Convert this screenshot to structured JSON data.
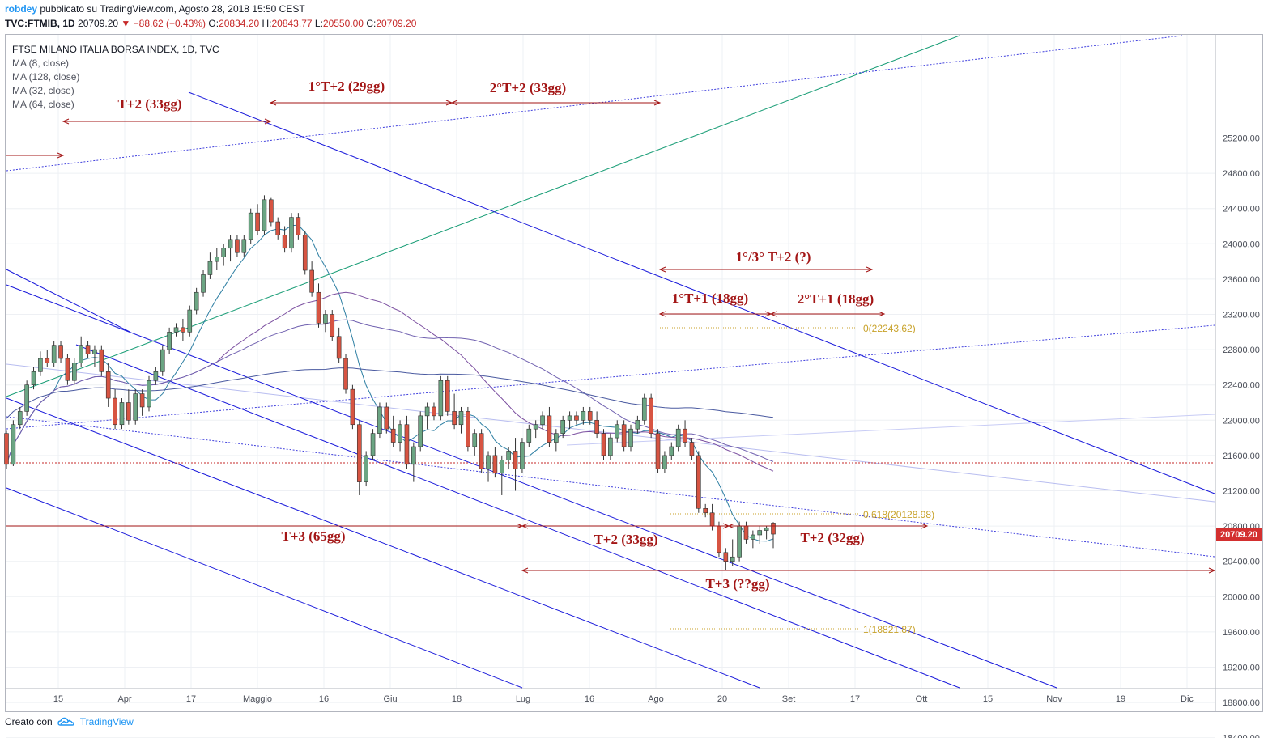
{
  "header": {
    "author": "robdey",
    "published": "pubblicato su TradingView.com, Agosto 28, 2018 15:50 CEST",
    "symbol": "TVC:FTMIB, 1D",
    "last": "20709.20",
    "change": "−88.62 (−0.43%)",
    "ohlc": {
      "o_label": "O:",
      "o": "20834.20",
      "h_label": "H:",
      "h": "20843.77",
      "l_label": "L:",
      "l": "20550.00",
      "c_label": "C:",
      "c": "20709.20"
    }
  },
  "legend": {
    "title": "FTSE MILANO ITALIA BORSA INDEX, 1D, TVC",
    "items": [
      "MA (8, close)",
      "MA (128, close)",
      "MA (32, close)",
      "MA (64, close)"
    ]
  },
  "footer": {
    "created_with": "Creato con",
    "brand": "TradingView"
  },
  "colors": {
    "up": "#6ba583",
    "down": "#d75442",
    "annotation": "#a31515",
    "channel": "#1a1adb",
    "fib": "#c8a22a",
    "trend": "#1a9e77"
  },
  "chart_data": {
    "type": "candlestick",
    "title": "FTSE MILANO ITALIA BORSA INDEX, 1D, TVC",
    "y_axis": {
      "ticks": [
        18400,
        18800,
        19200,
        19600,
        20000,
        20400,
        20800,
        21200,
        21600,
        22000,
        22400,
        22800,
        23200,
        23600,
        24000,
        24400,
        24800,
        25200
      ],
      "min": 18150,
      "max": 25600
    },
    "x_axis": {
      "ticks": [
        "15",
        "Apr",
        "17",
        "Maggio",
        "16",
        "Giu",
        "18",
        "Lug",
        "16",
        "Ago",
        "20",
        "Set",
        "17",
        "Ott",
        "15",
        "Nov",
        "19",
        "Dic"
      ]
    },
    "last_price": "20709.20",
    "candles": [
      [
        21850,
        21880,
        21450,
        21500
      ],
      [
        21500,
        22000,
        21480,
        21950
      ],
      [
        21950,
        22150,
        21900,
        22100
      ],
      [
        22100,
        22450,
        22050,
        22400
      ],
      [
        22400,
        22600,
        22350,
        22550
      ],
      [
        22550,
        22780,
        22500,
        22700
      ],
      [
        22700,
        22800,
        22600,
        22650
      ],
      [
        22650,
        22900,
        22600,
        22850
      ],
      [
        22850,
        22900,
        22650,
        22700
      ],
      [
        22700,
        22750,
        22400,
        22450
      ],
      [
        22450,
        22700,
        22400,
        22650
      ],
      [
        22650,
        22950,
        22600,
        22850
      ],
      [
        22850,
        22900,
        22700,
        22750
      ],
      [
        22750,
        22850,
        22600,
        22800
      ],
      [
        22800,
        22850,
        22500,
        22550
      ],
      [
        22550,
        22650,
        22150,
        22250
      ],
      [
        22250,
        22350,
        21900,
        21950
      ],
      [
        21950,
        22250,
        21900,
        22200
      ],
      [
        22200,
        22350,
        21950,
        22000
      ],
      [
        22000,
        22350,
        21950,
        22300
      ],
      [
        22300,
        22350,
        22050,
        22150
      ],
      [
        22150,
        22500,
        22100,
        22450
      ],
      [
        22450,
        22600,
        22400,
        22550
      ],
      [
        22550,
        22850,
        22500,
        22800
      ],
      [
        22800,
        23050,
        22750,
        23000
      ],
      [
        23000,
        23100,
        22950,
        23050
      ],
      [
        23050,
        23150,
        22900,
        23000
      ],
      [
        23000,
        23300,
        22950,
        23250
      ],
      [
        23250,
        23500,
        23200,
        23450
      ],
      [
        23450,
        23700,
        23400,
        23650
      ],
      [
        23650,
        23900,
        23600,
        23800
      ],
      [
        23800,
        23950,
        23700,
        23850
      ],
      [
        23850,
        24000,
        23750,
        23950
      ],
      [
        23950,
        24100,
        23800,
        24050
      ],
      [
        24050,
        24100,
        23850,
        23900
      ],
      [
        23900,
        24100,
        23850,
        24050
      ],
      [
        24050,
        24400,
        24000,
        24350
      ],
      [
        24350,
        24450,
        24100,
        24150
      ],
      [
        24150,
        24550,
        24100,
        24500
      ],
      [
        24500,
        24520,
        24200,
        24250
      ],
      [
        24250,
        24300,
        24050,
        24100
      ],
      [
        24100,
        24200,
        23900,
        23950
      ],
      [
        23950,
        24350,
        23900,
        24300
      ],
      [
        24300,
        24350,
        24050,
        24100
      ],
      [
        24100,
        24150,
        23650,
        23700
      ],
      [
        23700,
        23800,
        23400,
        23450
      ],
      [
        23450,
        23550,
        23050,
        23100
      ],
      [
        23100,
        23250,
        23000,
        23200
      ],
      [
        23200,
        23250,
        22900,
        22950
      ],
      [
        22950,
        23050,
        22650,
        22700
      ],
      [
        22700,
        22750,
        22300,
        22350
      ],
      [
        22350,
        22400,
        21900,
        21950
      ],
      [
        21950,
        22000,
        21150,
        21300
      ],
      [
        21300,
        21650,
        21250,
        21600
      ],
      [
        21600,
        21900,
        21550,
        21850
      ],
      [
        21850,
        22200,
        21800,
        22150
      ],
      [
        22150,
        22200,
        21850,
        21900
      ],
      [
        21900,
        22050,
        21700,
        21750
      ],
      [
        21750,
        22000,
        21650,
        21950
      ],
      [
        21950,
        22050,
        21450,
        21500
      ],
      [
        21500,
        21750,
        21300,
        21700
      ],
      [
        21700,
        22100,
        21650,
        22050
      ],
      [
        22050,
        22200,
        21900,
        22150
      ],
      [
        22150,
        22200,
        22000,
        22050
      ],
      [
        22050,
        22500,
        22000,
        22450
      ],
      [
        22450,
        22500,
        22050,
        22100
      ],
      [
        22100,
        22300,
        21900,
        21950
      ],
      [
        21950,
        22150,
        21850,
        22100
      ],
      [
        22100,
        22150,
        21650,
        21700
      ],
      [
        21700,
        21900,
        21600,
        21850
      ],
      [
        21850,
        21900,
        21400,
        21450
      ],
      [
        21450,
        21650,
        21300,
        21600
      ],
      [
        21600,
        21700,
        21350,
        21400
      ],
      [
        21400,
        21600,
        21150,
        21550
      ],
      [
        21550,
        21700,
        21450,
        21650
      ],
      [
        21650,
        21800,
        21200,
        21450
      ],
      [
        21450,
        21800,
        21400,
        21750
      ],
      [
        21750,
        21950,
        21700,
        21900
      ],
      [
        21900,
        22000,
        21800,
        21950
      ],
      [
        21950,
        22100,
        21900,
        22050
      ],
      [
        22050,
        22150,
        21700,
        21750
      ],
      [
        21750,
        21900,
        21650,
        21850
      ],
      [
        21850,
        22050,
        21800,
        22000
      ],
      [
        22000,
        22100,
        21900,
        22050
      ],
      [
        22050,
        22100,
        21950,
        22000
      ],
      [
        22000,
        22150,
        21950,
        22100
      ],
      [
        22100,
        22150,
        21950,
        22000
      ],
      [
        22000,
        22100,
        21800,
        21850
      ],
      [
        21850,
        21900,
        21550,
        21600
      ],
      [
        21600,
        21850,
        21550,
        21800
      ],
      [
        21800,
        22000,
        21750,
        21950
      ],
      [
        21950,
        22000,
        21650,
        21700
      ],
      [
        21700,
        21950,
        21650,
        21900
      ],
      [
        21900,
        22050,
        21850,
        22000
      ],
      [
        22000,
        22300,
        21950,
        22250
      ],
      [
        22250,
        22300,
        21800,
        21850
      ],
      [
        21850,
        21900,
        21400,
        21450
      ],
      [
        21450,
        21650,
        21400,
        21600
      ],
      [
        21600,
        21750,
        21550,
        21700
      ],
      [
        21700,
        21950,
        21650,
        21900
      ],
      [
        21900,
        22000,
        21700,
        21750
      ],
      [
        21750,
        21800,
        21550,
        21600
      ],
      [
        21600,
        21650,
        20950,
        21000
      ],
      [
        21000,
        21050,
        20900,
        20950
      ],
      [
        20950,
        21050,
        20750,
        20800
      ],
      [
        20800,
        20850,
        20450,
        20500
      ],
      [
        20500,
        20550,
        20300,
        20400
      ],
      [
        20400,
        20650,
        20350,
        20450
      ],
      [
        20450,
        20850,
        20400,
        20800
      ],
      [
        20800,
        20850,
        20600,
        20650
      ],
      [
        20650,
        20750,
        20550,
        20700
      ],
      [
        20700,
        20800,
        20600,
        20750
      ],
      [
        20750,
        20800,
        20650,
        20780
      ],
      [
        20834,
        20844,
        20550,
        20709
      ]
    ],
    "moving_averages": [
      {
        "name": "MA (8, close)"
      },
      {
        "name": "MA (32, close)"
      },
      {
        "name": "MA (64, close)"
      },
      {
        "name": "MA (128, close)"
      }
    ],
    "annotations": [
      "T+2 (33gg)",
      "1°T+2 (29gg)",
      "2°T+2 (33gg)",
      "1°/3° T+2 (?)",
      "1°T+1 (18gg)",
      "2°T+1 (18gg)",
      "T+3 (65gg)",
      "T+2 (33gg)",
      "T+2 (32gg)",
      "T+3 (??gg)"
    ],
    "fib_labels": [
      "0(22243.62)",
      "0.618(20128.98)",
      "1(18821.87)"
    ]
  }
}
